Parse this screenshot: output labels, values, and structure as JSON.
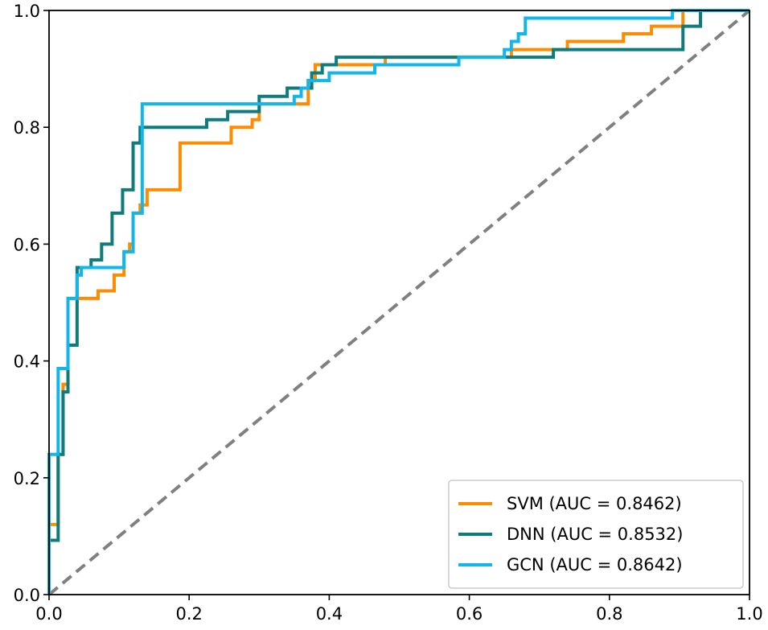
{
  "chart_data": {
    "type": "line",
    "title": "",
    "xlabel": "",
    "ylabel": "",
    "xlim": [
      0.0,
      1.0
    ],
    "ylim": [
      0.0,
      1.0
    ],
    "xticks": [
      0.0,
      0.2,
      0.4,
      0.6,
      0.8,
      1.0
    ],
    "yticks": [
      0.0,
      0.2,
      0.4,
      0.6,
      0.8,
      1.0
    ],
    "xtick_labels": [
      "0.0",
      "0.2",
      "0.4",
      "0.6",
      "0.8",
      "1.0"
    ],
    "ytick_labels": [
      "0.0",
      "0.2",
      "0.4",
      "0.6",
      "0.8",
      "1.0"
    ],
    "grid": false,
    "legend_position": "bottom-right",
    "reference_line": {
      "name": "chance",
      "x": [
        0,
        1
      ],
      "y": [
        0,
        1
      ],
      "color": "#808080",
      "style": "dashed"
    },
    "series": [
      {
        "name": "SVM (AUC = 0.8462)",
        "color": "#ff8c00",
        "x": [
          0.0,
          0.0,
          0.013,
          0.013,
          0.02,
          0.02,
          0.027,
          0.027,
          0.046,
          0.046,
          0.07,
          0.07,
          0.093,
          0.093,
          0.107,
          0.107,
          0.115,
          0.115,
          0.12,
          0.12,
          0.13,
          0.13,
          0.14,
          0.14,
          0.187,
          0.187,
          0.26,
          0.26,
          0.28,
          0.28,
          0.29,
          0.29,
          0.3,
          0.3,
          0.37,
          0.37,
          0.38,
          0.38,
          0.48,
          0.48,
          0.66,
          0.66,
          0.74,
          0.74,
          0.82,
          0.82,
          0.86,
          0.86,
          0.905,
          0.905,
          1.0
        ],
        "y": [
          0.0,
          0.12,
          0.12,
          0.24,
          0.24,
          0.36,
          0.36,
          0.507,
          0.507,
          0.507,
          0.507,
          0.52,
          0.52,
          0.547,
          0.547,
          0.587,
          0.587,
          0.6,
          0.6,
          0.653,
          0.653,
          0.667,
          0.667,
          0.693,
          0.693,
          0.773,
          0.773,
          0.8,
          0.8,
          0.8,
          0.8,
          0.813,
          0.813,
          0.84,
          0.84,
          0.88,
          0.88,
          0.907,
          0.907,
          0.92,
          0.92,
          0.933,
          0.933,
          0.947,
          0.947,
          0.96,
          0.96,
          0.973,
          0.973,
          1.0,
          1.0
        ]
      },
      {
        "name": "DNN (AUC = 0.8532)",
        "color": "#0e7c7b",
        "x": [
          0.0,
          0.0,
          0.013,
          0.013,
          0.02,
          0.02,
          0.027,
          0.027,
          0.04,
          0.04,
          0.06,
          0.06,
          0.075,
          0.075,
          0.09,
          0.09,
          0.105,
          0.105,
          0.12,
          0.12,
          0.13,
          0.13,
          0.225,
          0.225,
          0.255,
          0.255,
          0.3,
          0.3,
          0.34,
          0.34,
          0.375,
          0.375,
          0.39,
          0.39,
          0.41,
          0.41,
          0.655,
          0.655,
          0.72,
          0.72,
          0.905,
          0.905,
          0.93,
          0.93,
          1.0
        ],
        "y": [
          0.0,
          0.093,
          0.093,
          0.24,
          0.24,
          0.347,
          0.347,
          0.427,
          0.427,
          0.56,
          0.56,
          0.573,
          0.573,
          0.6,
          0.6,
          0.653,
          0.653,
          0.693,
          0.693,
          0.773,
          0.773,
          0.8,
          0.8,
          0.813,
          0.813,
          0.827,
          0.827,
          0.853,
          0.853,
          0.867,
          0.867,
          0.893,
          0.893,
          0.907,
          0.907,
          0.92,
          0.92,
          0.92,
          0.92,
          0.933,
          0.933,
          0.973,
          0.973,
          1.0,
          1.0
        ]
      },
      {
        "name": "GCN (AUC = 0.8642)",
        "color": "#13b6ea",
        "x": [
          0.0,
          0.0,
          0.013,
          0.013,
          0.027,
          0.027,
          0.04,
          0.04,
          0.046,
          0.046,
          0.107,
          0.107,
          0.12,
          0.12,
          0.133,
          0.133,
          0.35,
          0.35,
          0.36,
          0.36,
          0.37,
          0.37,
          0.4,
          0.4,
          0.465,
          0.465,
          0.48,
          0.48,
          0.585,
          0.585,
          0.65,
          0.65,
          0.66,
          0.66,
          0.67,
          0.67,
          0.68,
          0.68,
          0.69,
          0.69,
          0.89,
          0.89,
          1.0
        ],
        "y": [
          0.0,
          0.24,
          0.24,
          0.387,
          0.387,
          0.507,
          0.507,
          0.547,
          0.547,
          0.56,
          0.56,
          0.587,
          0.587,
          0.653,
          0.653,
          0.84,
          0.84,
          0.853,
          0.853,
          0.867,
          0.867,
          0.88,
          0.88,
          0.893,
          0.893,
          0.907,
          0.907,
          0.907,
          0.907,
          0.92,
          0.92,
          0.933,
          0.933,
          0.947,
          0.947,
          0.96,
          0.96,
          0.987,
          0.987,
          0.987,
          0.987,
          1.0,
          1.0
        ]
      }
    ]
  }
}
